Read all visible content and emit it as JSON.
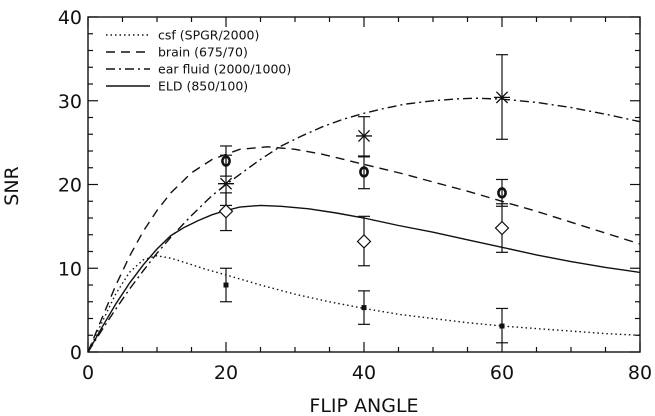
{
  "chart_data": {
    "type": "line",
    "title": "",
    "xlabel": "FLIP ANGLE",
    "ylabel": "SNR",
    "xlim": [
      0,
      80
    ],
    "ylim": [
      0,
      40
    ],
    "x_ticks": [
      0,
      20,
      40,
      60,
      80
    ],
    "y_ticks": [
      0,
      10,
      20,
      30,
      40
    ],
    "grid": false,
    "legend_position": "top-left",
    "series": [
      {
        "name": "csf (SPGR/2000)",
        "style": "dotted",
        "x": [
          0,
          2,
          4,
          6,
          8,
          10,
          12,
          14,
          17,
          20,
          25,
          30,
          35,
          40,
          45,
          50,
          55,
          60,
          65,
          70,
          75,
          80
        ],
        "y": [
          0,
          3.5,
          6.9,
          9.5,
          11.0,
          11.5,
          11.2,
          10.7,
          9.9,
          9.2,
          8.0,
          6.9,
          6.0,
          5.2,
          4.5,
          4.0,
          3.5,
          3.1,
          2.8,
          2.5,
          2.2,
          2.0
        ],
        "points": [
          {
            "x": 20,
            "y": 8.0,
            "err_low": 6.0,
            "err_high": 10.0,
            "marker": "square"
          },
          {
            "x": 40,
            "y": 5.3,
            "err_low": 3.3,
            "err_high": 7.3,
            "marker": "square"
          },
          {
            "x": 60,
            "y": 3.1,
            "err_low": 1.1,
            "err_high": 5.2,
            "marker": "square"
          }
        ]
      },
      {
        "name": "brain (675/70)",
        "style": "dashed",
        "x": [
          0,
          2,
          4,
          6,
          8,
          10,
          12,
          15,
          18,
          22,
          26,
          30,
          34,
          38,
          42,
          46,
          50,
          55,
          60,
          65,
          70,
          75,
          80
        ],
        "y": [
          0,
          4.0,
          7.9,
          11.4,
          14.4,
          16.9,
          19.0,
          21.4,
          23.0,
          24.2,
          24.5,
          24.2,
          23.6,
          22.8,
          22.0,
          21.2,
          20.3,
          19.2,
          18.0,
          16.8,
          15.5,
          14.2,
          12.9
        ],
        "points": [
          {
            "x": 20,
            "y": 22.8,
            "err_low": 21.0,
            "err_high": 24.6,
            "marker": "circle"
          },
          {
            "x": 40,
            "y": 21.5,
            "err_low": 19.5,
            "err_high": 23.4,
            "marker": "circle"
          },
          {
            "x": 60,
            "y": 19.0,
            "err_low": 17.4,
            "err_high": 20.6,
            "marker": "circle"
          }
        ]
      },
      {
        "name": "ear fluid (2000/1000)",
        "style": "dashdot",
        "x": [
          0,
          2,
          4,
          6,
          8,
          10,
          12,
          15,
          18,
          20,
          22,
          25,
          28,
          31,
          34,
          37,
          40,
          43,
          46,
          50,
          53,
          56,
          60,
          65,
          70,
          75,
          80
        ],
        "y": [
          0,
          2.6,
          5.1,
          7.5,
          9.7,
          11.8,
          13.7,
          16.3,
          18.7,
          20.0,
          21.2,
          23.0,
          24.6,
          25.8,
          26.9,
          27.8,
          28.5,
          29.1,
          29.6,
          30.0,
          30.2,
          30.3,
          30.2,
          29.8,
          29.2,
          28.4,
          27.5
        ],
        "points": [
          {
            "x": 20,
            "y": 20.1,
            "err_low": 17.5,
            "err_high": 23.5,
            "marker": "asterisk"
          },
          {
            "x": 40,
            "y": 25.8,
            "err_low": 23.3,
            "err_high": 28.1,
            "marker": "asterisk"
          },
          {
            "x": 60,
            "y": 30.4,
            "err_low": 25.4,
            "err_high": 35.5,
            "marker": "asterisk"
          }
        ]
      },
      {
        "name": "ELD (850/100)",
        "style": "solid",
        "x": [
          0,
          2,
          4,
          6,
          8,
          10,
          12,
          14,
          16,
          18,
          20,
          22,
          25,
          28,
          32,
          36,
          40,
          45,
          50,
          55,
          60,
          65,
          70,
          75,
          80
        ],
        "y": [
          0,
          2.9,
          5.7,
          8.2,
          10.4,
          12.3,
          13.9,
          14.9,
          15.7,
          16.4,
          16.9,
          17.3,
          17.5,
          17.4,
          17.1,
          16.6,
          16.0,
          15.1,
          14.3,
          13.4,
          12.5,
          11.6,
          10.8,
          10.1,
          9.5
        ],
        "points": [
          {
            "x": 20,
            "y": 16.8,
            "err_low": 14.5,
            "err_high": 19.0,
            "marker": "diamond"
          },
          {
            "x": 40,
            "y": 13.2,
            "err_low": 10.3,
            "err_high": 16.2,
            "marker": "diamond"
          },
          {
            "x": 60,
            "y": 14.8,
            "err_low": 11.9,
            "err_high": 17.7,
            "marker": "diamond"
          }
        ]
      }
    ]
  }
}
